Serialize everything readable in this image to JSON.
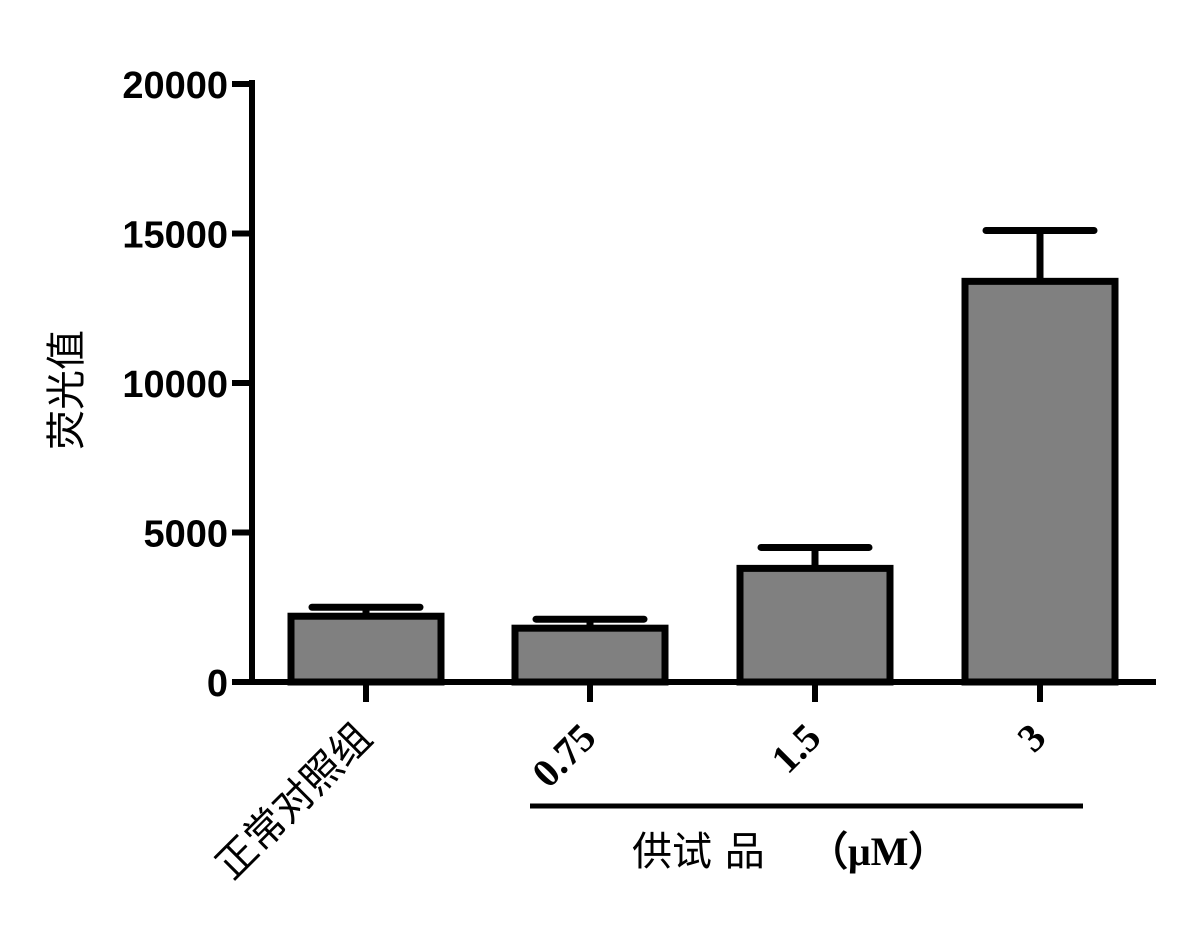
{
  "chart_data": {
    "type": "bar",
    "categories": [
      "正常对照组",
      "0.75",
      "1.5",
      "3"
    ],
    "values": [
      2200,
      1800,
      3800,
      13400
    ],
    "errors": [
      300,
      300,
      700,
      1700
    ],
    "ylabel": "荧光值",
    "ylim": [
      0,
      20000
    ],
    "yticks": [
      "0",
      "5000",
      "10000",
      "15000",
      "20000"
    ],
    "group_label": "供试 品",
    "group_unit": "（μM）",
    "grid": false,
    "legend": "none",
    "colors": {
      "bar_fill": "#808080",
      "bar_stroke": "#000000",
      "axis": "#000000"
    }
  }
}
